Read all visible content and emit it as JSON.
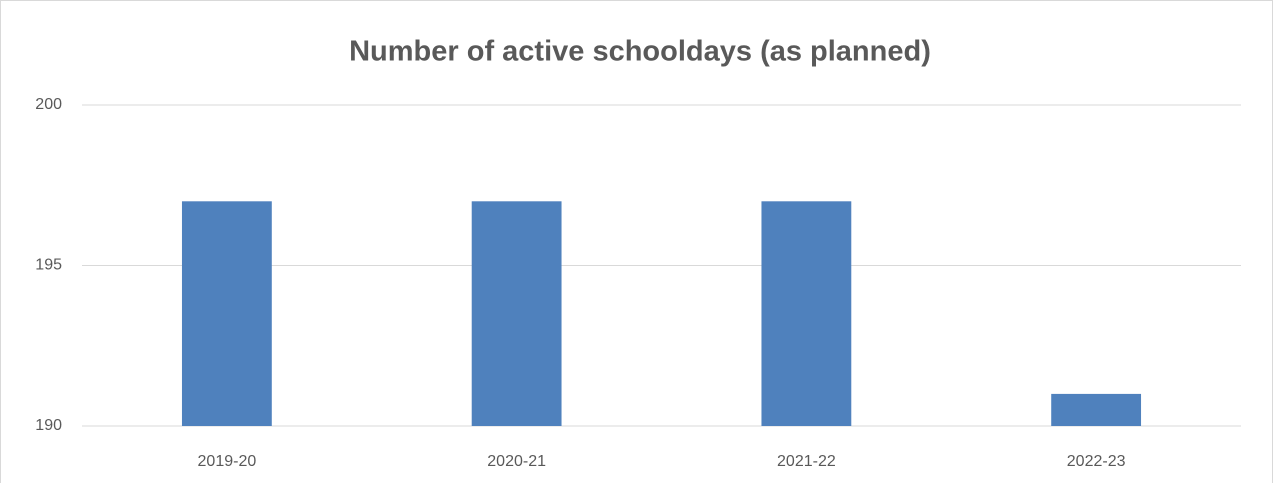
{
  "chart_data": {
    "type": "bar",
    "title": "Number of active schooldays (as planned)",
    "categories": [
      "2019-20",
      "2020-21",
      "2021-22",
      "2022-23"
    ],
    "values": [
      197,
      197,
      197,
      191
    ],
    "color": "#4f81bd",
    "ylim": [
      190,
      200
    ],
    "yticks": [
      190,
      195,
      200
    ],
    "grid": true
  }
}
